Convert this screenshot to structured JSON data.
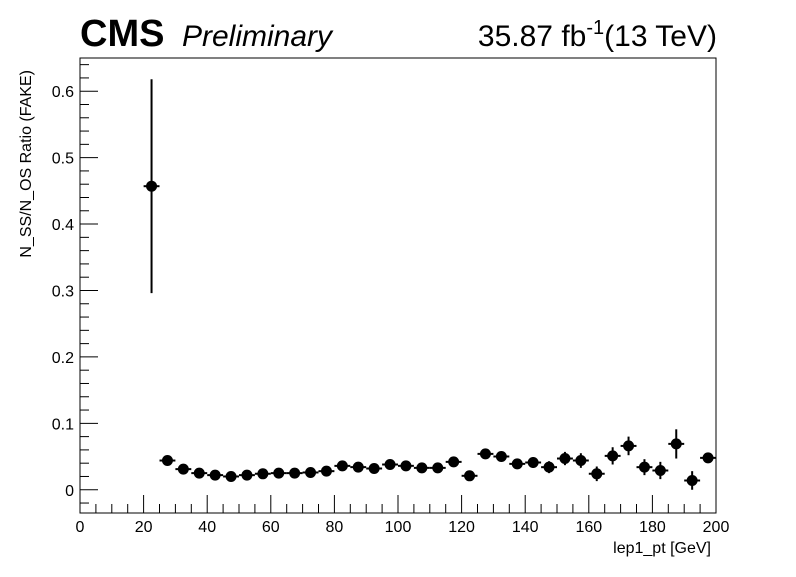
{
  "header": {
    "experiment": "CMS",
    "status": "Preliminary",
    "lumi_value": "35.87 fb",
    "lumi_exp": "-1",
    "energy": "(13 TeV)"
  },
  "chart_data": {
    "type": "scatter",
    "title": "",
    "xlabel": "lep1_pt [GeV]",
    "ylabel": "N_SS/N_OS Ratio (FAKE)",
    "xlim": [
      0,
      200
    ],
    "ylim": [
      -0.035,
      0.65
    ],
    "xticks": [
      0,
      20,
      40,
      60,
      80,
      100,
      120,
      140,
      160,
      180,
      200
    ],
    "yticks": [
      0,
      0.1,
      0.2,
      0.3,
      0.4,
      0.5,
      0.6
    ],
    "ytick_labels": [
      "0",
      "0.1",
      "0.2",
      "0.3",
      "0.4",
      "0.5",
      "0.6"
    ],
    "grid": false,
    "bin_halfwidth": 2.5,
    "points": [
      {
        "x": 22.5,
        "y": 0.457,
        "err": 0.161
      },
      {
        "x": 27.5,
        "y": 0.044,
        "err": 0.004
      },
      {
        "x": 32.5,
        "y": 0.031,
        "err": 0.004
      },
      {
        "x": 37.5,
        "y": 0.025,
        "err": 0.004
      },
      {
        "x": 42.5,
        "y": 0.022,
        "err": 0.004
      },
      {
        "x": 47.5,
        "y": 0.02,
        "err": 0.004
      },
      {
        "x": 52.5,
        "y": 0.022,
        "err": 0.004
      },
      {
        "x": 57.5,
        "y": 0.024,
        "err": 0.004
      },
      {
        "x": 62.5,
        "y": 0.025,
        "err": 0.004
      },
      {
        "x": 67.5,
        "y": 0.025,
        "err": 0.004
      },
      {
        "x": 72.5,
        "y": 0.026,
        "err": 0.004
      },
      {
        "x": 77.5,
        "y": 0.028,
        "err": 0.004
      },
      {
        "x": 82.5,
        "y": 0.036,
        "err": 0.005
      },
      {
        "x": 87.5,
        "y": 0.034,
        "err": 0.005
      },
      {
        "x": 92.5,
        "y": 0.032,
        "err": 0.005
      },
      {
        "x": 97.5,
        "y": 0.038,
        "err": 0.005
      },
      {
        "x": 102.5,
        "y": 0.036,
        "err": 0.005
      },
      {
        "x": 107.5,
        "y": 0.033,
        "err": 0.005
      },
      {
        "x": 112.5,
        "y": 0.033,
        "err": 0.005
      },
      {
        "x": 117.5,
        "y": 0.042,
        "err": 0.006
      },
      {
        "x": 122.5,
        "y": 0.021,
        "err": 0.005
      },
      {
        "x": 127.5,
        "y": 0.054,
        "err": 0.007
      },
      {
        "x": 132.5,
        "y": 0.05,
        "err": 0.007
      },
      {
        "x": 137.5,
        "y": 0.039,
        "err": 0.007
      },
      {
        "x": 142.5,
        "y": 0.041,
        "err": 0.008
      },
      {
        "x": 147.5,
        "y": 0.034,
        "err": 0.009
      },
      {
        "x": 152.5,
        "y": 0.047,
        "err": 0.01
      },
      {
        "x": 157.5,
        "y": 0.044,
        "err": 0.011
      },
      {
        "x": 162.5,
        "y": 0.024,
        "err": 0.011
      },
      {
        "x": 167.5,
        "y": 0.051,
        "err": 0.013
      },
      {
        "x": 172.5,
        "y": 0.066,
        "err": 0.014
      },
      {
        "x": 177.5,
        "y": 0.034,
        "err": 0.012
      },
      {
        "x": 182.5,
        "y": 0.029,
        "err": 0.013
      },
      {
        "x": 187.5,
        "y": 0.069,
        "err": 0.022
      },
      {
        "x": 192.5,
        "y": 0.014,
        "err": 0.014
      },
      {
        "x": 197.5,
        "y": 0.048,
        "err": 0.005
      }
    ]
  }
}
